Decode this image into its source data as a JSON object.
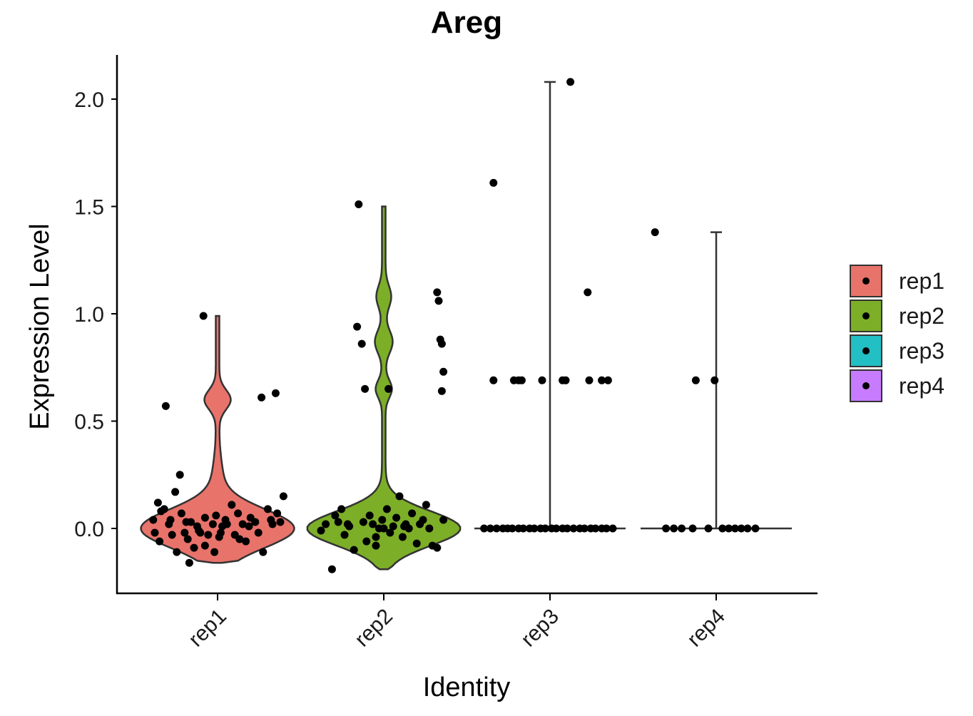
{
  "chart_data": {
    "type": "violin",
    "title": "Areg",
    "xlabel": "Identity",
    "ylabel": "Expression Level",
    "ylim": [
      -0.3,
      2.2
    ],
    "yticks": [
      0.0,
      0.5,
      1.0,
      1.5,
      2.0
    ],
    "ytick_labels": [
      "0.0",
      "0.5",
      "1.0",
      "1.5",
      "2.0"
    ],
    "categories": [
      "rep1",
      "rep2",
      "rep3",
      "rep4"
    ],
    "grid": false,
    "legend": {
      "placement": "right",
      "entries": [
        "rep1",
        "rep2",
        "rep3",
        "rep4"
      ]
    },
    "colors": {
      "rep1": "#E8736B",
      "rep2": "#7CAE28",
      "rep3": "#22BFC4",
      "rep4": "#C77CFF",
      "outline": "#333333",
      "points": "#000000"
    },
    "series": [
      {
        "name": "rep1",
        "range": [
          0.0,
          0.99
        ],
        "points": [
          [
            -0.41,
            0.04
          ],
          [
            -0.38,
            0.12
          ],
          [
            -0.33,
            0.57
          ],
          [
            -0.36,
            0.08
          ],
          [
            -0.4,
            -0.02
          ],
          [
            -0.37,
            -0.06
          ],
          [
            -0.31,
            0.02
          ],
          [
            -0.29,
            -0.03
          ],
          [
            -0.27,
            0.17
          ],
          [
            -0.24,
            0.25
          ],
          [
            -0.23,
            0.07
          ],
          [
            -0.21,
            -0.02
          ],
          [
            -0.19,
            -0.05
          ],
          [
            -0.17,
            0.03
          ],
          [
            -0.15,
            -0.09
          ],
          [
            -0.13,
            0.01
          ],
          [
            -0.11,
            -0.02
          ],
          [
            -0.08,
            0.05
          ],
          [
            -0.06,
            -0.03
          ],
          [
            -0.03,
            0.02
          ],
          [
            -0.01,
            0.06
          ],
          [
            -0.02,
            -0.11
          ],
          [
            0.01,
            -0.04
          ],
          [
            0.03,
            0.01
          ],
          [
            0.05,
            0.04
          ],
          [
            0.09,
            0.11
          ],
          [
            0.11,
            -0.03
          ],
          [
            0.13,
            0.07
          ],
          [
            0.16,
            0.02
          ],
          [
            0.18,
            -0.06
          ],
          [
            0.21,
            0.05
          ],
          [
            0.24,
            0.03
          ],
          [
            0.26,
            -0.02
          ],
          [
            0.28,
            0.61
          ],
          [
            0.29,
            -0.11
          ],
          [
            0.32,
            0.09
          ],
          [
            0.34,
            0.04
          ],
          [
            0.37,
            0.63
          ],
          [
            0.38,
            0.07
          ],
          [
            0.4,
            0.03
          ],
          [
            0.42,
            0.15
          ],
          [
            0.35,
            0.02
          ],
          [
            -0.26,
            -0.11
          ],
          [
            -0.18,
            -0.16
          ],
          [
            -0.08,
            -0.08
          ],
          [
            0.06,
            0.02
          ],
          [
            0.14,
            -0.05
          ],
          [
            -0.09,
            0.99
          ],
          [
            -0.34,
            0.09
          ],
          [
            -0.3,
            0.04
          ],
          [
            -0.2,
            0.03
          ],
          [
            -0.12,
            -0.01
          ],
          [
            0.02,
            -0.02
          ],
          [
            0.2,
            0.01
          ]
        ]
      },
      {
        "name": "rep2",
        "range": [
          0.0,
          1.5
        ],
        "points": [
          [
            -0.4,
            -0.01
          ],
          [
            -0.37,
            0.02
          ],
          [
            -0.33,
            -0.19
          ],
          [
            -0.31,
            0.06
          ],
          [
            -0.29,
            0.03
          ],
          [
            -0.27,
            0.09
          ],
          [
            -0.25,
            -0.03
          ],
          [
            -0.22,
            0.01
          ],
          [
            -0.19,
            -0.1
          ],
          [
            -0.17,
            0.94
          ],
          [
            -0.16,
            1.51
          ],
          [
            -0.14,
            0.86
          ],
          [
            -0.13,
            0.03
          ],
          [
            -0.11,
            -0.06
          ],
          [
            -0.09,
            0.06
          ],
          [
            -0.07,
            0.02
          ],
          [
            -0.05,
            -0.04
          ],
          [
            -0.03,
            0.0
          ],
          [
            -0.01,
            0.04
          ],
          [
            0.02,
            0.09
          ],
          [
            0.04,
            -0.02
          ],
          [
            0.06,
            0.01
          ],
          [
            0.08,
            0.05
          ],
          [
            0.1,
            0.15
          ],
          [
            0.12,
            -0.04
          ],
          [
            0.14,
            0.02
          ],
          [
            0.16,
            0.0
          ],
          [
            0.18,
            0.07
          ],
          [
            0.21,
            -0.07
          ],
          [
            0.23,
            0.02
          ],
          [
            0.25,
            0.04
          ],
          [
            0.27,
            0.11
          ],
          [
            0.29,
            0.0
          ],
          [
            0.31,
            -0.08
          ],
          [
            0.34,
            1.1
          ],
          [
            0.35,
            1.06
          ],
          [
            0.36,
            0.88
          ],
          [
            0.37,
            0.86
          ],
          [
            0.38,
            0.73
          ],
          [
            0.37,
            0.64
          ],
          [
            0.38,
            0.04
          ],
          [
            0.34,
            -0.09
          ],
          [
            -0.12,
            0.65
          ],
          [
            0.03,
            0.65
          ],
          [
            -0.23,
            0.02
          ],
          [
            -0.05,
            -0.08
          ],
          [
            0.0,
            0.0
          ],
          [
            0.13,
            0.01
          ]
        ]
      },
      {
        "name": "rep3",
        "range": [
          0.0,
          2.08
        ],
        "points": [
          [
            -0.36,
            1.61
          ],
          [
            0.13,
            2.08
          ],
          [
            0.24,
            1.1
          ],
          [
            -0.36,
            0.69
          ],
          [
            -0.23,
            0.69
          ],
          [
            -0.2,
            0.69
          ],
          [
            -0.18,
            0.69
          ],
          [
            -0.05,
            0.69
          ],
          [
            0.08,
            0.69
          ],
          [
            0.1,
            0.69
          ],
          [
            0.25,
            0.69
          ],
          [
            0.33,
            0.69
          ],
          [
            0.37,
            0.69
          ],
          [
            -0.42,
            0.0
          ],
          [
            -0.38,
            0.0
          ],
          [
            -0.34,
            0.0
          ],
          [
            -0.3,
            0.0
          ],
          [
            -0.27,
            0.0
          ],
          [
            -0.24,
            0.0
          ],
          [
            -0.2,
            0.0
          ],
          [
            -0.17,
            0.0
          ],
          [
            -0.13,
            0.0
          ],
          [
            -0.1,
            0.0
          ],
          [
            -0.06,
            0.0
          ],
          [
            -0.03,
            0.0
          ],
          [
            0.01,
            0.0
          ],
          [
            0.04,
            0.0
          ],
          [
            0.08,
            0.0
          ],
          [
            0.11,
            0.0
          ],
          [
            0.15,
            0.0
          ],
          [
            0.19,
            0.0
          ],
          [
            0.22,
            0.0
          ],
          [
            0.26,
            0.0
          ],
          [
            0.29,
            0.0
          ],
          [
            0.33,
            0.0
          ],
          [
            0.36,
            0.0
          ],
          [
            0.4,
            0.0
          ]
        ]
      },
      {
        "name": "rep4",
        "range": [
          0.0,
          1.38
        ],
        "points": [
          [
            -0.39,
            1.38
          ],
          [
            -0.13,
            0.69
          ],
          [
            -0.01,
            0.69
          ],
          [
            -0.32,
            0.0
          ],
          [
            -0.27,
            0.0
          ],
          [
            -0.22,
            0.0
          ],
          [
            -0.15,
            0.0
          ],
          [
            -0.05,
            0.0
          ],
          [
            0.04,
            0.0
          ],
          [
            0.08,
            0.0
          ],
          [
            0.12,
            0.0
          ],
          [
            0.16,
            0.0
          ],
          [
            0.2,
            0.0
          ],
          [
            0.25,
            0.0
          ]
        ]
      }
    ]
  }
}
